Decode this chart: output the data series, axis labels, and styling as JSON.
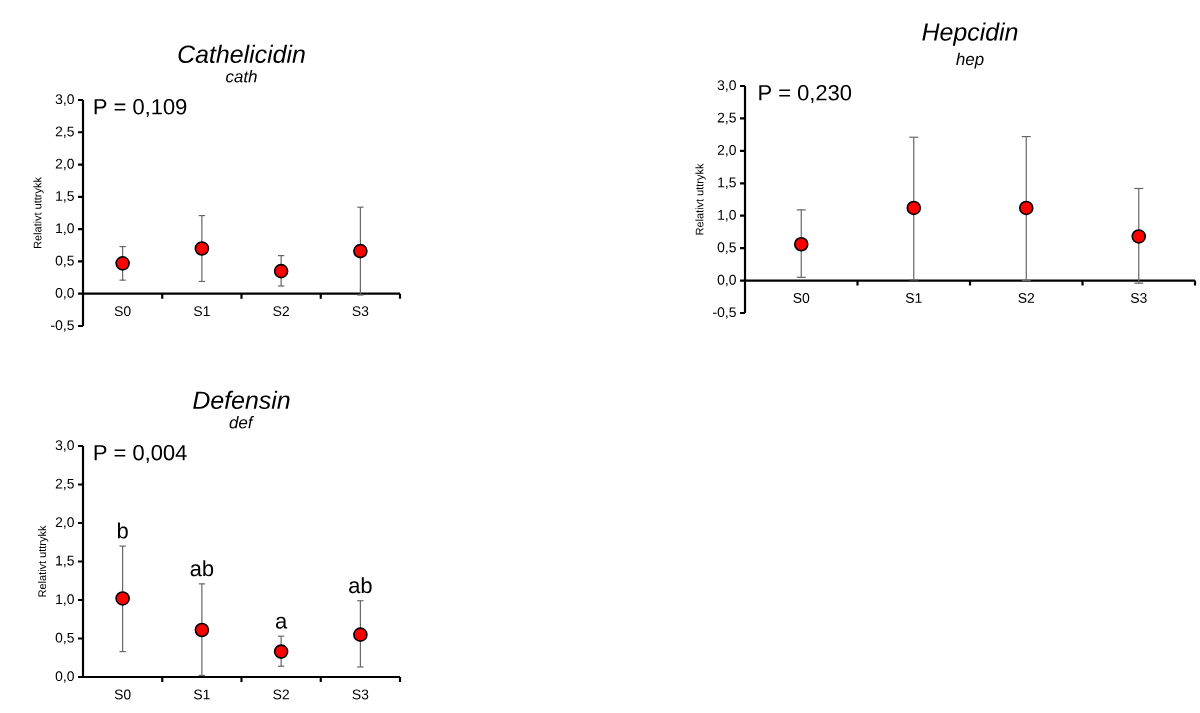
{
  "chart_data": [
    {
      "type": "scatter",
      "title": "*Cathelicidin*",
      "subtitle": "*cath*",
      "ylabel": "Relativt uttrykk",
      "categories": [
        "S0",
        "S1",
        "S2",
        "S3"
      ],
      "values": [
        0.47,
        0.7,
        0.35,
        0.66
      ],
      "color": "#ff0000",
      "errors": [
        [
          0.21,
          0.73
        ],
        [
          0.19,
          1.21
        ],
        [
          0.12,
          0.59
        ],
        [
          -0.02,
          1.34
        ]
      ],
      "ylim": [
        -0.5,
        3.0
      ],
      "yticks": [
        {
          "value": -0.5,
          "label": "-0,5"
        },
        {
          "value": 0,
          "label": "0,0"
        },
        {
          "value": 0.5,
          "label": "0,5"
        },
        {
          "value": 1.0,
          "label": "1,0"
        },
        {
          "value": 1.5,
          "label": "1,5"
        },
        {
          "value": 2.0,
          "label": "2,0"
        },
        {
          "value": 2.5,
          "label": "2,5"
        },
        {
          "value": 3.0,
          "label": "3,0"
        }
      ],
      "annotations": [
        "P = 0,109"
      ]
    },
    {
      "type": "scatter",
      "title": "*Hepcidin*",
      "subtitle": "*hep*",
      "ylabel": "Relativt uttrykk",
      "categories": [
        "S0",
        "S1",
        "S2",
        "S3"
      ],
      "values": [
        0.56,
        1.12,
        1.12,
        0.68
      ],
      "color": "#ff0000",
      "errors": [
        [
          0.05,
          1.09
        ],
        [
          0.01,
          2.21
        ],
        [
          0.0,
          2.22
        ],
        [
          -0.04,
          1.42
        ]
      ],
      "ylim": [
        -0.5,
        3.0
      ],
      "yticks": [
        {
          "value": -0.5,
          "label": "-0,5"
        },
        {
          "value": 0,
          "label": "0,0"
        },
        {
          "value": 0.5,
          "label": "0,5"
        },
        {
          "value": 1.0,
          "label": "1,0"
        },
        {
          "value": 1.5,
          "label": "1,5"
        },
        {
          "value": 2.0,
          "label": "2,0"
        },
        {
          "value": 2.5,
          "label": "2,5"
        },
        {
          "value": 3.0,
          "label": "3,0"
        }
      ],
      "annotations": [
        "P = 0,230"
      ]
    },
    {
      "type": "scatter",
      "title": "*Defensin*",
      "subtitle": "*def*",
      "ylabel": "Relativt uttrykk",
      "categories": [
        "S0",
        "S1",
        "S2",
        "S3"
      ],
      "values": [
        1.02,
        0.61,
        0.33,
        0.55
      ],
      "color": "#ff0000",
      "errors": [
        [
          0.33,
          1.7
        ],
        [
          0.02,
          1.21
        ],
        [
          0.14,
          0.53
        ],
        [
          0.13,
          0.99
        ]
      ],
      "ylim": [
        0.0,
        3.0
      ],
      "yticks": [
        {
          "value": 0,
          "label": "0,0"
        },
        {
          "value": 0.5,
          "label": "0,5"
        },
        {
          "value": 1.0,
          "label": "1,0"
        },
        {
          "value": 1.5,
          "label": "1,5"
        },
        {
          "value": 2.0,
          "label": "2,0"
        },
        {
          "value": 2.5,
          "label": "2,5"
        },
        {
          "value": 3.0,
          "label": "3,0"
        }
      ],
      "annotations": [
        "P = 0,004",
        "b",
        "ab",
        "a",
        "ab"
      ]
    }
  ]
}
